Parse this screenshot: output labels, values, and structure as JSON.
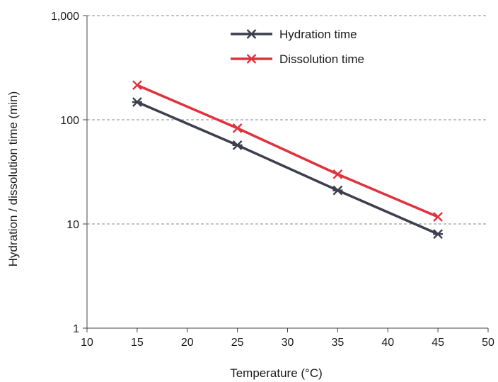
{
  "chart_data": {
    "type": "line",
    "title": "",
    "xlabel": "Temperature (°C)",
    "ylabel": "Hydration / dissolution time (min)",
    "xlim": [
      10,
      50
    ],
    "ylim": [
      1,
      1000
    ],
    "yscale": "log",
    "x_ticks": [
      10,
      15,
      20,
      25,
      30,
      35,
      40,
      45,
      50
    ],
    "x_tick_labels": [
      "10",
      "15",
      "20",
      "25",
      "30",
      "35",
      "40",
      "45",
      "50"
    ],
    "y_ticks": [
      1,
      10,
      100,
      1000
    ],
    "y_tick_labels": [
      "1",
      "10",
      "100",
      "1,000"
    ],
    "grid": "horizontal dashed",
    "legend": "top",
    "series": [
      {
        "name": "Hydration time",
        "color": "#3d3f4e",
        "marker": "asterisk",
        "x": [
          15,
          25,
          35,
          45
        ],
        "values": [
          148,
          57,
          21,
          8
        ]
      },
      {
        "name": "Dissolution time",
        "color": "#e0323c",
        "marker": "x",
        "x": [
          15,
          25,
          35,
          45
        ],
        "values": [
          215,
          83,
          30,
          11.7
        ]
      }
    ]
  }
}
